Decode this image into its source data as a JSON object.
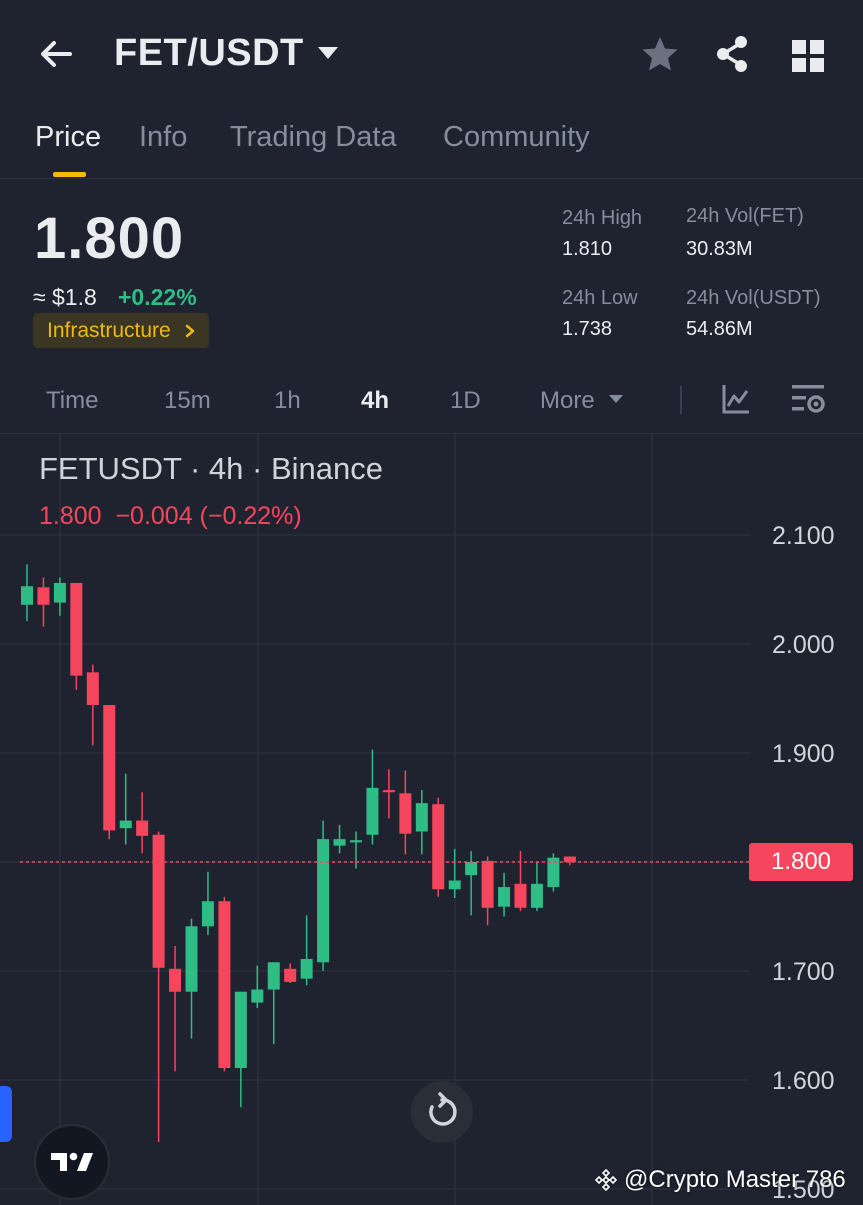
{
  "header": {
    "pair": "FET/USDT",
    "icons": [
      "arrow-left-icon",
      "caret-down-icon",
      "star-icon",
      "share-icon",
      "grid-icon"
    ]
  },
  "tabs": [
    {
      "label": "Price",
      "active": true
    },
    {
      "label": "Info",
      "active": false
    },
    {
      "label": "Trading Data",
      "active": false
    },
    {
      "label": "Community",
      "active": false
    }
  ],
  "ticker": {
    "last_price": "1.800",
    "usd_approx": "≈ $1.8",
    "change_pct": "+0.22%",
    "category": "Infrastructure",
    "stats": {
      "high_label": "24h High",
      "high_value": "1.810",
      "low_label": "24h Low",
      "low_value": "1.738",
      "vol_base_label": "24h Vol(FET)",
      "vol_base_value": "30.83M",
      "vol_quote_label": "24h Vol(USDT)",
      "vol_quote_value": "54.86M"
    }
  },
  "intervals": [
    {
      "label": "Time",
      "active": false
    },
    {
      "label": "15m",
      "active": false
    },
    {
      "label": "1h",
      "active": false
    },
    {
      "label": "4h",
      "active": true
    },
    {
      "label": "1D",
      "active": false
    },
    {
      "label": "More",
      "active": false
    }
  ],
  "colors": {
    "up": "#2ebd85",
    "down": "#f6465d",
    "accent": "#f0b90b",
    "background": "#1f2330"
  },
  "chart_data": {
    "type": "candlestick",
    "title": "FETUSDT · 4h · Binance",
    "ohlc_line": "1.800  −0.004 (−0.22%)",
    "current_price_label": "1.800",
    "current_price": 1.8,
    "y_ticks": [
      "2.100",
      "2.000",
      "1.900",
      "1.800",
      "1.700",
      "1.600",
      "1.500"
    ],
    "ylim": [
      1.5,
      2.1
    ],
    "grid": true,
    "candles": [
      {
        "o": 2.036,
        "h": 2.073,
        "l": 2.021,
        "c": 2.053
      },
      {
        "o": 2.052,
        "h": 2.061,
        "l": 2.016,
        "c": 2.036
      },
      {
        "o": 2.038,
        "h": 2.061,
        "l": 2.026,
        "c": 2.056
      },
      {
        "o": 2.056,
        "h": 2.056,
        "l": 1.958,
        "c": 1.971
      },
      {
        "o": 1.974,
        "h": 1.981,
        "l": 1.907,
        "c": 1.944
      },
      {
        "o": 1.944,
        "h": 1.944,
        "l": 1.821,
        "c": 1.829
      },
      {
        "o": 1.831,
        "h": 1.881,
        "l": 1.816,
        "c": 1.838
      },
      {
        "o": 1.838,
        "h": 1.864,
        "l": 1.808,
        "c": 1.824
      },
      {
        "o": 1.825,
        "h": 1.828,
        "l": 1.543,
        "c": 1.703
      },
      {
        "o": 1.702,
        "h": 1.723,
        "l": 1.608,
        "c": 1.681
      },
      {
        "o": 1.681,
        "h": 1.748,
        "l": 1.638,
        "c": 1.741
      },
      {
        "o": 1.741,
        "h": 1.791,
        "l": 1.733,
        "c": 1.764
      },
      {
        "o": 1.764,
        "h": 1.768,
        "l": 1.608,
        "c": 1.611
      },
      {
        "o": 1.611,
        "h": 1.681,
        "l": 1.575,
        "c": 1.681
      },
      {
        "o": 1.671,
        "h": 1.705,
        "l": 1.666,
        "c": 1.683
      },
      {
        "o": 1.683,
        "h": 1.708,
        "l": 1.633,
        "c": 1.708
      },
      {
        "o": 1.702,
        "h": 1.707,
        "l": 1.689,
        "c": 1.69
      },
      {
        "o": 1.693,
        "h": 1.751,
        "l": 1.687,
        "c": 1.711
      },
      {
        "o": 1.708,
        "h": 1.838,
        "l": 1.7,
        "c": 1.821
      },
      {
        "o": 1.815,
        "h": 1.834,
        "l": 1.808,
        "c": 1.821
      },
      {
        "o": 1.818,
        "h": 1.828,
        "l": 1.794,
        "c": 1.82
      },
      {
        "o": 1.825,
        "h": 1.903,
        "l": 1.816,
        "c": 1.868
      },
      {
        "o": 1.866,
        "h": 1.885,
        "l": 1.84,
        "c": 1.864
      },
      {
        "o": 1.863,
        "h": 1.884,
        "l": 1.807,
        "c": 1.826
      },
      {
        "o": 1.828,
        "h": 1.866,
        "l": 1.807,
        "c": 1.854
      },
      {
        "o": 1.853,
        "h": 1.859,
        "l": 1.768,
        "c": 1.775
      },
      {
        "o": 1.775,
        "h": 1.812,
        "l": 1.767,
        "c": 1.783
      },
      {
        "o": 1.788,
        "h": 1.81,
        "l": 1.751,
        "c": 1.8
      },
      {
        "o": 1.801,
        "h": 1.805,
        "l": 1.742,
        "c": 1.758
      },
      {
        "o": 1.759,
        "h": 1.79,
        "l": 1.75,
        "c": 1.777
      },
      {
        "o": 1.78,
        "h": 1.81,
        "l": 1.755,
        "c": 1.758
      },
      {
        "o": 1.758,
        "h": 1.8,
        "l": 1.755,
        "c": 1.78
      },
      {
        "o": 1.777,
        "h": 1.808,
        "l": 1.773,
        "c": 1.804
      },
      {
        "o": 1.805,
        "h": 1.805,
        "l": 1.797,
        "c": 1.8
      }
    ]
  },
  "watermark": "@Crypto Master 786"
}
